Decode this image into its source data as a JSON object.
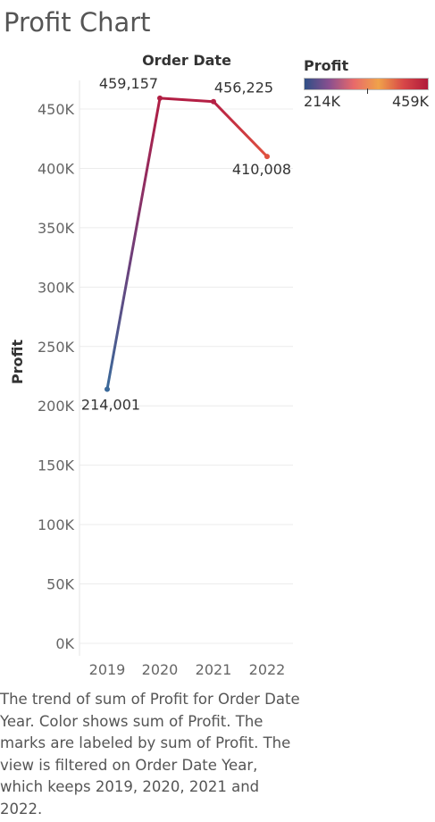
{
  "title": "Profit Chart",
  "caption": "The trend of sum of Profit for Order Date Year.  Color shows sum of Profit. The marks are labeled by sum of Profit. The view is filtered on Order Date Year, which keeps 2019, 2020, 2021 and 2022.",
  "legend": {
    "title": "Profit",
    "min_label": "214K",
    "max_label": "459K",
    "gradient_colors": [
      "#2f4f86",
      "#8a4f8f",
      "#e86a6a",
      "#f0a24a",
      "#d84848",
      "#b01a3a"
    ]
  },
  "chart_data": {
    "type": "line",
    "title": "",
    "xlabel": "Order Date",
    "ylabel": "Profit",
    "categories": [
      "2019",
      "2020",
      "2021",
      "2022"
    ],
    "values": [
      214001,
      459157,
      456225,
      410008
    ],
    "data_labels": [
      "214,001",
      "459,157",
      "456,225",
      "410,008"
    ],
    "ylim": [
      0,
      459157
    ],
    "yticks": [
      0,
      50000,
      100000,
      150000,
      200000,
      250000,
      300000,
      350000,
      400000,
      450000
    ],
    "ytick_labels": [
      "0K",
      "50K",
      "100K",
      "150K",
      "200K",
      "250K",
      "300K",
      "350K",
      "400K",
      "450K"
    ],
    "point_colors": [
      "#3b6a9a",
      "#b11e43",
      "#b51f44",
      "#e0513f"
    ],
    "grid": true,
    "legend_position": "top-right"
  }
}
